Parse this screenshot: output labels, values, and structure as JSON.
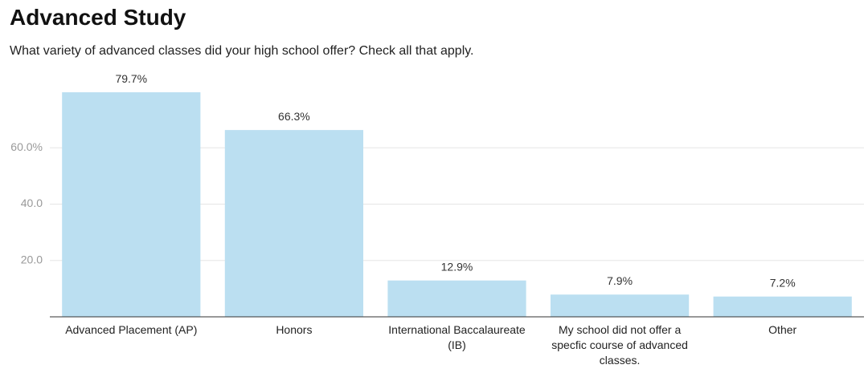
{
  "chart_data": {
    "type": "bar",
    "title": "Advanced Study",
    "subtitle": "What variety of advanced classes did your high school offer? Check all that apply.",
    "categories": [
      "Advanced Placement (AP)",
      "Honors",
      "International Baccalaureate (IB)",
      "My school did not offer a specfic course of advanced classes.",
      "Other"
    ],
    "values": [
      79.7,
      66.3,
      12.9,
      7.9,
      7.2
    ],
    "value_labels": [
      "79.7%",
      "66.3%",
      "12.9%",
      "7.9%",
      "7.2%"
    ],
    "color": "#bbdff1",
    "ylim": [
      0,
      80
    ],
    "yticks": [
      {
        "value": 20,
        "label": "20.0"
      },
      {
        "value": 40,
        "label": "40.0"
      },
      {
        "value": 60,
        "label": "60.0%"
      }
    ],
    "grid": true
  }
}
